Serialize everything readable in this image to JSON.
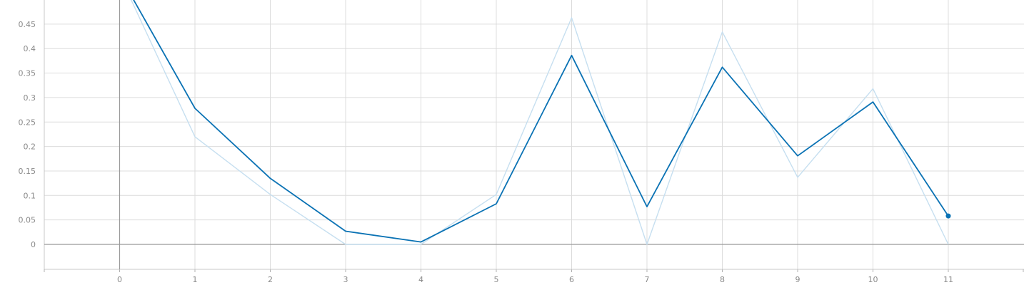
{
  "chart_data": {
    "type": "line",
    "title": "",
    "xlabel": "",
    "ylabel": "",
    "xlim": [
      -1,
      12
    ],
    "ylim": [
      -0.05,
      0.5
    ],
    "grid": true,
    "x_ticks": [
      "0",
      "1",
      "2",
      "3",
      "4",
      "5",
      "6",
      "7",
      "8",
      "9",
      "10",
      "11"
    ],
    "y_ticks": [
      "0",
      "0.05",
      "0.1",
      "0.15",
      "0.2",
      "0.25",
      "0.3",
      "0.35",
      "0.4",
      "0.45"
    ],
    "series": [
      {
        "role": "raw",
        "color": "#c6dff0",
        "x": [
          0,
          1,
          2,
          3,
          4,
          5,
          6,
          7,
          8,
          9,
          10,
          11
        ],
        "y": [
          0.55,
          0.22,
          0.102,
          0.0,
          0.0,
          0.102,
          0.463,
          0.0,
          0.434,
          0.137,
          0.318,
          0.0
        ]
      },
      {
        "role": "smoothed",
        "color": "#0a72b4",
        "x": [
          0,
          1,
          2,
          3,
          4,
          5,
          6,
          7,
          8,
          9,
          10,
          11
        ],
        "y": [
          0.55,
          0.278,
          0.135,
          0.027,
          0.005,
          0.083,
          0.386,
          0.077,
          0.362,
          0.181,
          0.291,
          0.058
        ],
        "end_marker": true
      }
    ]
  }
}
